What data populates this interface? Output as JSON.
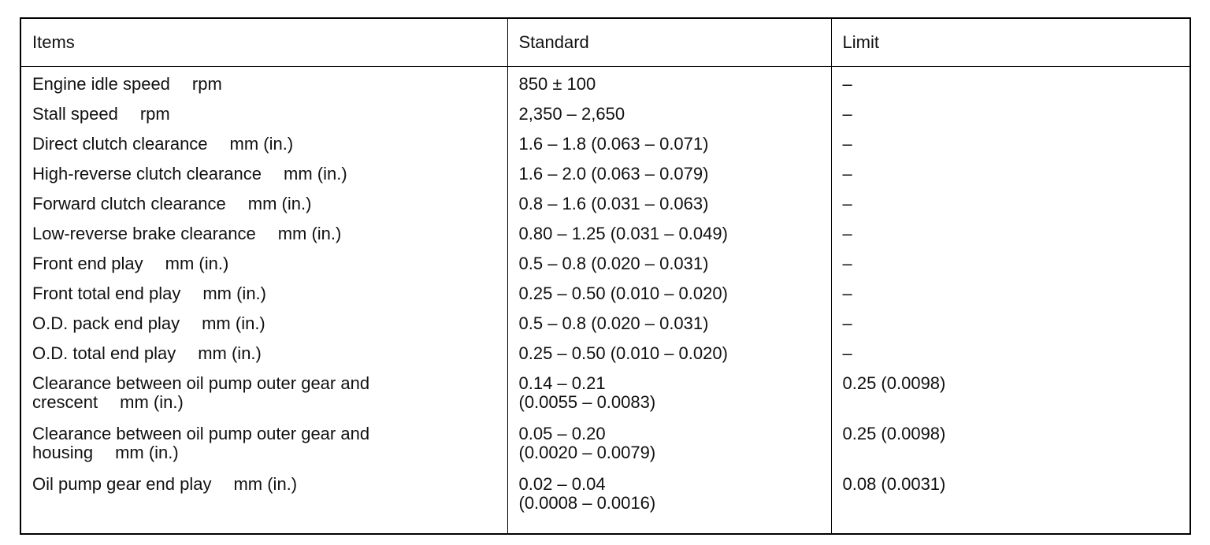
{
  "table": {
    "header": [
      "Items",
      "Standard",
      "Limit"
    ],
    "rows": [
      {
        "item": "Engine idle speed",
        "unit": "rpm",
        "standard": [
          "850 ± 100"
        ],
        "limit": "–"
      },
      {
        "item": "Stall speed",
        "unit": "rpm",
        "standard": [
          "2,350 – 2,650"
        ],
        "limit": "–"
      },
      {
        "item": "Direct clutch clearance",
        "unit": "mm (in.)",
        "standard": [
          "1.6 – 1.8 (0.063 – 0.071)"
        ],
        "limit": "–"
      },
      {
        "item": "High-reverse clutch clearance",
        "unit": "mm (in.)",
        "standard": [
          "1.6 – 2.0 (0.063 – 0.079)"
        ],
        "limit": "–"
      },
      {
        "item": "Forward clutch clearance",
        "unit": "mm (in.)",
        "standard": [
          "0.8 – 1.6 (0.031 – 0.063)"
        ],
        "limit": "–"
      },
      {
        "item": "Low-reverse brake clearance",
        "unit": "mm (in.)",
        "standard": [
          "0.80 – 1.25 (0.031 – 0.049)"
        ],
        "limit": "–"
      },
      {
        "item": "Front end play",
        "unit": "mm (in.)",
        "standard": [
          "0.5 – 0.8 (0.020 – 0.031)"
        ],
        "limit": "–"
      },
      {
        "item": "Front total end play",
        "unit": "mm (in.)",
        "standard": [
          "0.25 – 0.50 (0.010 – 0.020)"
        ],
        "limit": "–"
      },
      {
        "item": "O.D. pack end play",
        "unit": "mm (in.)",
        "standard": [
          "0.5 – 0.8 (0.020 – 0.031)"
        ],
        "limit": "–"
      },
      {
        "item": "O.D. total end play",
        "unit": "mm (in.)",
        "standard": [
          "0.25 – 0.50 (0.010 – 0.020)"
        ],
        "limit": "–"
      },
      {
        "item": "Clearance between oil pump outer gear and crescent",
        "unit": "mm (in.)",
        "standard": [
          "0.14 – 0.21",
          "(0.0055 – 0.0083)"
        ],
        "limit": "0.25 (0.0098)"
      },
      {
        "item": "Clearance between oil pump outer gear and housing",
        "unit": "mm (in.)",
        "standard": [
          "0.05 – 0.20",
          "(0.0020 – 0.0079)"
        ],
        "limit": "0.25 (0.0098)"
      },
      {
        "item": "Oil pump gear end play",
        "unit": "mm (in.)",
        "standard": [
          "0.02 – 0.04",
          "(0.0008 – 0.0016)"
        ],
        "limit": "0.08 (0.0031)"
      }
    ]
  }
}
